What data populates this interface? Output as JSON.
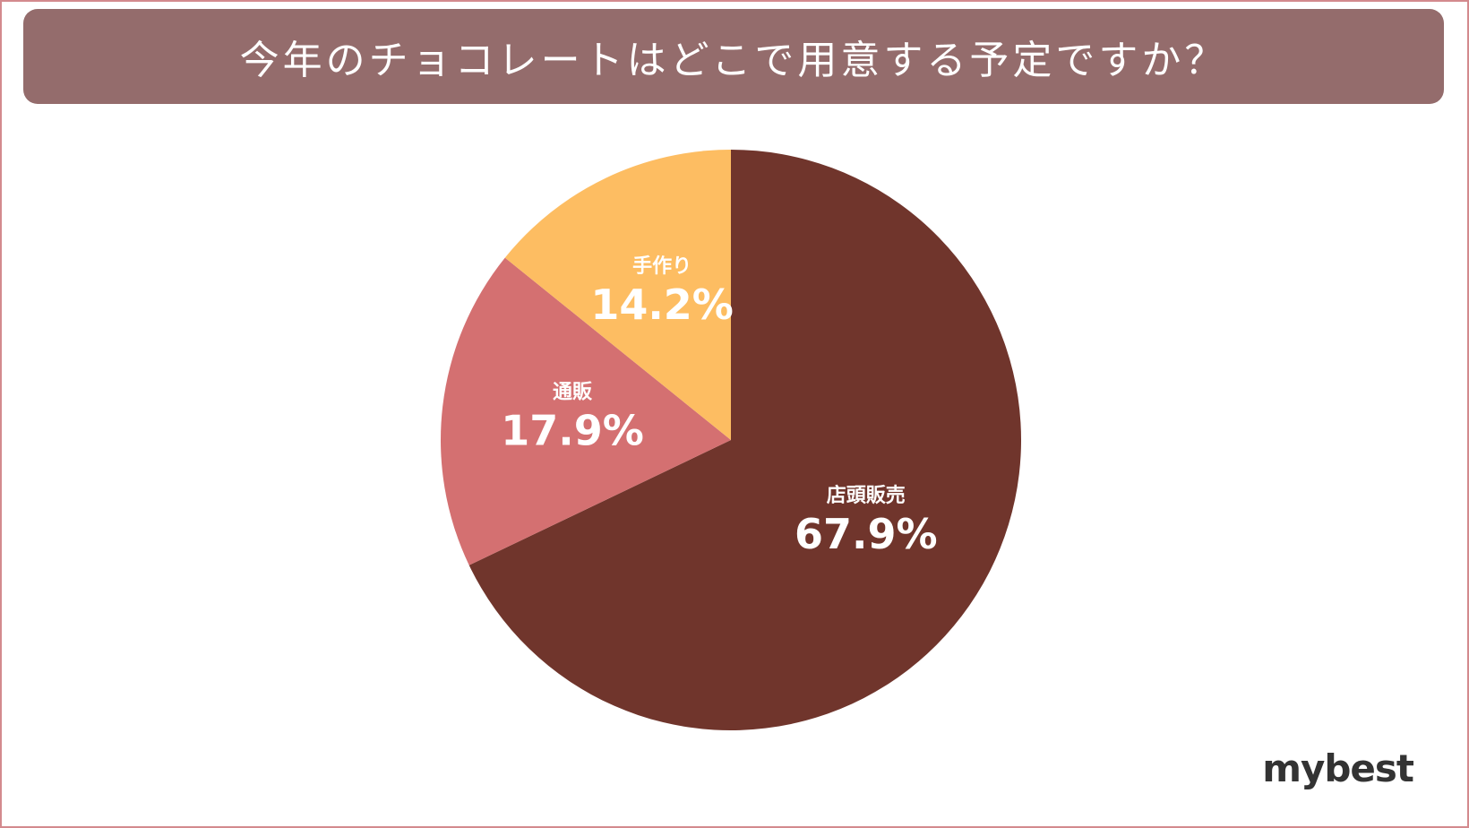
{
  "colors": {
    "title_bg": "#946c6c",
    "frame_border": "#d38a8e",
    "label_text": "#ffffff",
    "logo_text": "#333333"
  },
  "chart_data": {
    "type": "pie",
    "title": "今年のチョコレートはどこで用意する予定ですか？",
    "slices": [
      {
        "label": "店頭販売",
        "value": 67.9,
        "display": "67.9%",
        "color": "#70352c"
      },
      {
        "label": "通販",
        "value": 17.9,
        "display": "17.9%",
        "color": "#d47071"
      },
      {
        "label": "手作り",
        "value": 14.2,
        "display": "14.2%",
        "color": "#fdbd62"
      }
    ],
    "start_angle_deg": 0,
    "direction": "clockwise"
  },
  "logo": {
    "text": "mybest"
  }
}
